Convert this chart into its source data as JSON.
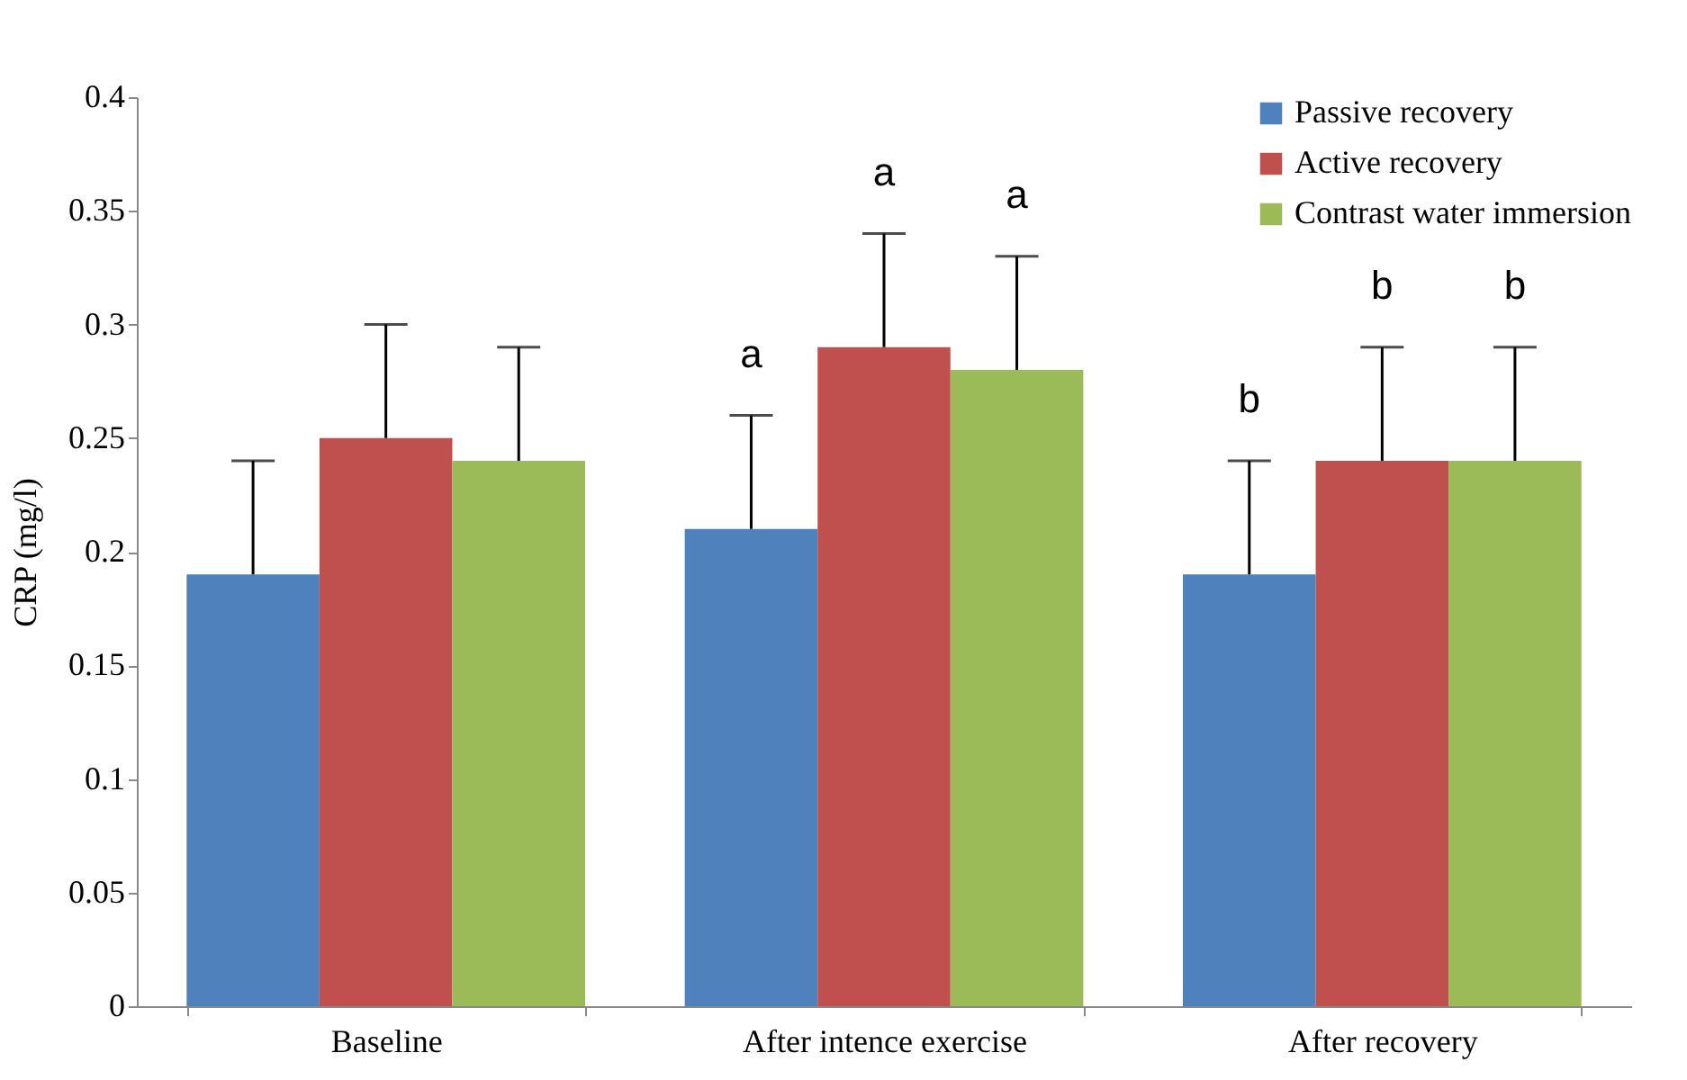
{
  "chart_data": {
    "type": "bar",
    "ylabel": "CRP (mg/l)",
    "categories": [
      "Baseline",
      "After intence exercise",
      "After recovery"
    ],
    "series": [
      {
        "name": "Passive recovery",
        "color": "#4f81bd",
        "values": [
          0.19,
          0.21,
          0.19
        ],
        "errors": [
          [
            0.19,
            0.24
          ],
          [
            0.21,
            0.26
          ],
          [
            0.19,
            0.24
          ]
        ]
      },
      {
        "name": "Active recovery",
        "color": "#c0504d",
        "values": [
          0.25,
          0.29,
          0.24
        ],
        "errors": [
          [
            0.25,
            0.3
          ],
          [
            0.29,
            0.34
          ],
          [
            0.24,
            0.29
          ]
        ]
      },
      {
        "name": "Contrast water immersion",
        "color": "#9bbb59",
        "values": [
          0.24,
          0.28,
          0.24
        ],
        "errors": [
          [
            0.24,
            0.29
          ],
          [
            0.28,
            0.33
          ],
          [
            0.24,
            0.29
          ]
        ]
      }
    ],
    "annotations": [
      "a",
      "a",
      "a",
      "b",
      "b",
      "b"
    ],
    "ylim": [
      0,
      0.4
    ],
    "yticks": [
      0,
      0.05,
      0.1,
      0.15,
      0.2,
      0.25,
      0.3,
      0.35,
      0.4
    ],
    "grid": false,
    "legend": "top right"
  }
}
